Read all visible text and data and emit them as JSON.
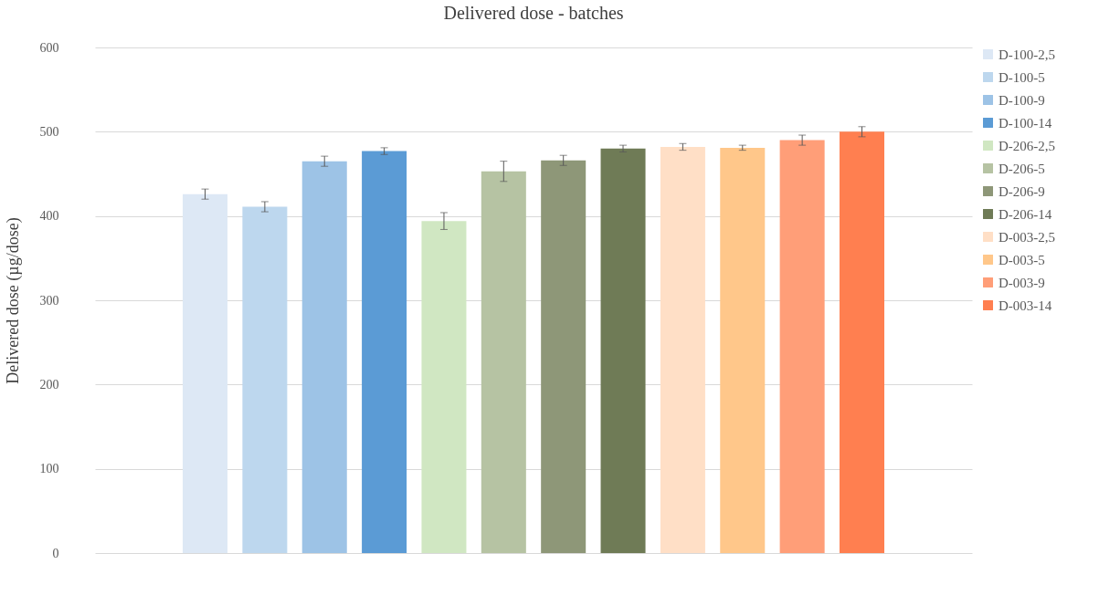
{
  "chart_data": {
    "type": "bar",
    "title": "Delivered dose - batches",
    "ylabel": "Delivered dose (µg/dose)",
    "categories": [
      null
    ],
    "ylim": [
      0,
      600
    ],
    "yticks": [
      0,
      100,
      200,
      300,
      400,
      500,
      600
    ],
    "grid": "y",
    "legend": "right",
    "series": [
      {
        "name": "D-100-2,5",
        "color": "#dde8f5",
        "values": [
          426
        ],
        "errors": [
          6
        ]
      },
      {
        "name": "D-100-5",
        "color": "#bdd7ee",
        "values": [
          411
        ],
        "errors": [
          6
        ]
      },
      {
        "name": "D-100-9",
        "color": "#9dc3e6",
        "values": [
          465
        ],
        "errors": [
          6
        ]
      },
      {
        "name": "D-100-14",
        "color": "#5b9bd5",
        "values": [
          477
        ],
        "errors": [
          4
        ]
      },
      {
        "name": "D-206-2,5",
        "color": "#d0e7c2",
        "values": [
          394
        ],
        "errors": [
          10
        ]
      },
      {
        "name": "D-206-5",
        "color": "#b6c3a3",
        "values": [
          453
        ],
        "errors": [
          12
        ]
      },
      {
        "name": "D-206-9",
        "color": "#8e9778",
        "values": [
          466
        ],
        "errors": [
          6
        ]
      },
      {
        "name": "D-206-14",
        "color": "#6f7b56",
        "values": [
          480
        ],
        "errors": [
          4
        ]
      },
      {
        "name": "D-003-2,5",
        "color": "#ffdfc6",
        "values": [
          482
        ],
        "errors": [
          4
        ]
      },
      {
        "name": "D-003-5",
        "color": "#ffc78a",
        "values": [
          481
        ],
        "errors": [
          3
        ]
      },
      {
        "name": "D-003-9",
        "color": "#ff9e78",
        "values": [
          490
        ],
        "errors": [
          6
        ]
      },
      {
        "name": "D-003-14",
        "color": "#ff7f50",
        "values": [
          500
        ],
        "errors": [
          6
        ]
      }
    ]
  }
}
